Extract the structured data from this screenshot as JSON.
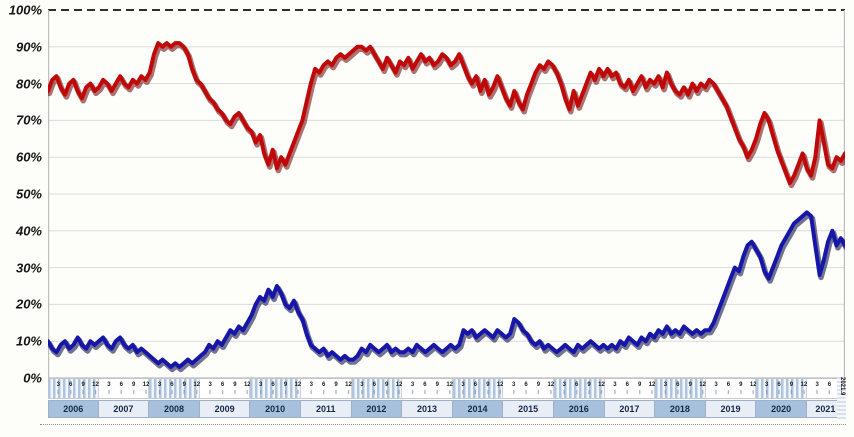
{
  "chart": {
    "y_axis": {
      "labels": [
        "100%",
        "90%",
        "80%",
        "70%",
        "60%",
        "50%",
        "40%",
        "30%",
        "20%",
        "10%",
        "0%"
      ],
      "min": 0,
      "max": 100,
      "step": 10
    },
    "x_axis": {
      "quarter_month_labels": [
        3,
        6,
        9,
        12
      ],
      "years": [
        {
          "label": "2006",
          "months": 12,
          "shaded": true
        },
        {
          "label": "2007",
          "months": 12,
          "shaded": false
        },
        {
          "label": "2008",
          "months": 12,
          "shaded": true
        },
        {
          "label": "2009",
          "months": 12,
          "shaded": false
        },
        {
          "label": "2010",
          "months": 12,
          "shaded": true
        },
        {
          "label": "2011",
          "months": 12,
          "shaded": false
        },
        {
          "label": "2012",
          "months": 12,
          "shaded": true
        },
        {
          "label": "2013",
          "months": 12,
          "shaded": false
        },
        {
          "label": "2014",
          "months": 12,
          "shaded": true
        },
        {
          "label": "2015",
          "months": 12,
          "shaded": false
        },
        {
          "label": "2016",
          "months": 12,
          "shaded": true
        },
        {
          "label": "2017",
          "months": 12,
          "shaded": false
        },
        {
          "label": "2018",
          "months": 12,
          "shaded": true
        },
        {
          "label": "2019",
          "months": 12,
          "shaded": false
        },
        {
          "label": "2020",
          "months": 12,
          "shaded": true
        },
        {
          "label": "2021",
          "months": 9,
          "shaded": false
        }
      ],
      "end_label": "2021.9"
    },
    "colors": {
      "grid": "#dcdcdc",
      "axis_border": "#bdbdbd",
      "ceiling_dash": "#2e2e2e",
      "band_stripe": "#aec4df",
      "year_shaded": "#a7c1dd",
      "year_plain": "#e9eef6"
    }
  },
  "chart_data": {
    "type": "line",
    "x_start": "2006-01",
    "x_end": "2021-09",
    "frequency": "monthly",
    "ylim": [
      0,
      100
    ],
    "grid": true,
    "legend": "none",
    "y_tick_labels": [
      "100%",
      "90%",
      "80%",
      "70%",
      "60%",
      "50%",
      "40%",
      "30%",
      "20%",
      "10%",
      "0%"
    ],
    "series": [
      {
        "name": "upper-red-line",
        "color": "#c00808",
        "edge_color": "#6a0000",
        "values": [
          78,
          81,
          82,
          79,
          77,
          80,
          81,
          78,
          76,
          79,
          80,
          78,
          79,
          81,
          80,
          78,
          80,
          82,
          80,
          79,
          81,
          80,
          82,
          81,
          83,
          88,
          91,
          90,
          91,
          90,
          91,
          91,
          90,
          88,
          84,
          81,
          80,
          78,
          76,
          75,
          73,
          72,
          70,
          69,
          71,
          72,
          70,
          68,
          67,
          64,
          66,
          61,
          58,
          62,
          57,
          60,
          58,
          61,
          64,
          67,
          70,
          75,
          80,
          84,
          83,
          85,
          86,
          85,
          87,
          88,
          87,
          88,
          89,
          90,
          90,
          89,
          90,
          88,
          86,
          84,
          87,
          85,
          83,
          86,
          85,
          87,
          84,
          86,
          88,
          86,
          87,
          85,
          86,
          88,
          87,
          85,
          86,
          88,
          85,
          82,
          80,
          82,
          78,
          81,
          77,
          79,
          82,
          79,
          76,
          74,
          78,
          75,
          73,
          77,
          80,
          83,
          85,
          84,
          86,
          85,
          83,
          80,
          76,
          73,
          78,
          74,
          77,
          80,
          83,
          81,
          84,
          82,
          84,
          82,
          83,
          80,
          79,
          81,
          78,
          80,
          82,
          79,
          81,
          80,
          82,
          79,
          83,
          80,
          78,
          77,
          79,
          77,
          80,
          78,
          80,
          79,
          81,
          80,
          78,
          76,
          74,
          71,
          68,
          65,
          63,
          60,
          62,
          65,
          69,
          72,
          70,
          66,
          62,
          59,
          56,
          53,
          55,
          58,
          61,
          57,
          55,
          60,
          70,
          64,
          58,
          57,
          60,
          59,
          61
        ]
      },
      {
        "name": "lower-blue-line",
        "color": "#1616a8",
        "edge_color": "#00003c",
        "values": [
          10,
          8,
          7,
          9,
          10,
          8,
          9,
          11,
          9,
          8,
          10,
          9,
          10,
          11,
          9,
          8,
          10,
          11,
          9,
          8,
          9,
          7,
          8,
          7,
          6,
          5,
          4,
          5,
          4,
          3,
          4,
          3,
          4,
          5,
          4,
          5,
          6,
          7,
          9,
          8,
          10,
          9,
          11,
          13,
          12,
          14,
          13,
          15,
          17,
          20,
          22,
          21,
          24,
          22,
          25,
          23,
          20,
          19,
          21,
          18,
          16,
          12,
          9,
          8,
          7,
          8,
          6,
          7,
          6,
          5,
          6,
          5,
          5,
          6,
          8,
          7,
          9,
          8,
          7,
          8,
          9,
          7,
          8,
          7,
          7,
          8,
          7,
          9,
          8,
          7,
          8,
          9,
          8,
          7,
          8,
          9,
          8,
          9,
          13,
          12,
          13,
          11,
          12,
          13,
          12,
          11,
          13,
          12,
          11,
          12,
          16,
          15,
          13,
          12,
          10,
          9,
          10,
          8,
          9,
          8,
          7,
          8,
          9,
          8,
          7,
          9,
          8,
          9,
          10,
          9,
          8,
          9,
          8,
          9,
          8,
          10,
          9,
          11,
          10,
          9,
          11,
          10,
          12,
          11,
          13,
          12,
          14,
          12,
          13,
          12,
          14,
          13,
          12,
          13,
          12,
          13,
          13,
          15,
          18,
          21,
          24,
          27,
          30,
          29,
          33,
          36,
          37,
          35,
          33,
          29,
          27,
          30,
          33,
          36,
          38,
          40,
          42,
          43,
          44,
          45,
          44,
          36,
          28,
          32,
          37,
          40,
          36,
          38,
          36
        ]
      }
    ]
  }
}
